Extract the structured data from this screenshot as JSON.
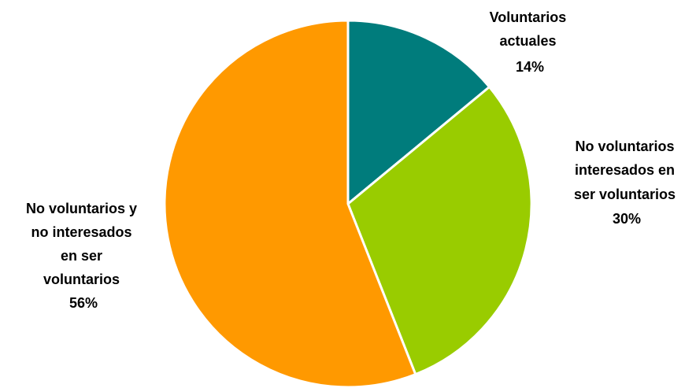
{
  "chart_data": {
    "type": "pie",
    "categories": [
      "Voluntarios actuales",
      "No voluntarios interesados en ser voluntarios",
      "No voluntarios y no interesados en ser voluntarios"
    ],
    "values": [
      14,
      30,
      56
    ],
    "colors": [
      "#007c7c",
      "#99cc00",
      "#ff9900"
    ],
    "labels": [
      {
        "lines": [
          "Voluntarios",
          "actuales"
        ],
        "value": "14%"
      },
      {
        "lines": [
          "No voluntarios",
          "interesados en",
          "ser voluntarios"
        ],
        "value": "30%"
      },
      {
        "lines": [
          "No voluntarios y",
          "no interesados",
          "en ser",
          "voluntarios"
        ],
        "value": "56%"
      }
    ],
    "start_angle": "12 o'clock",
    "direction": "clockwise"
  }
}
